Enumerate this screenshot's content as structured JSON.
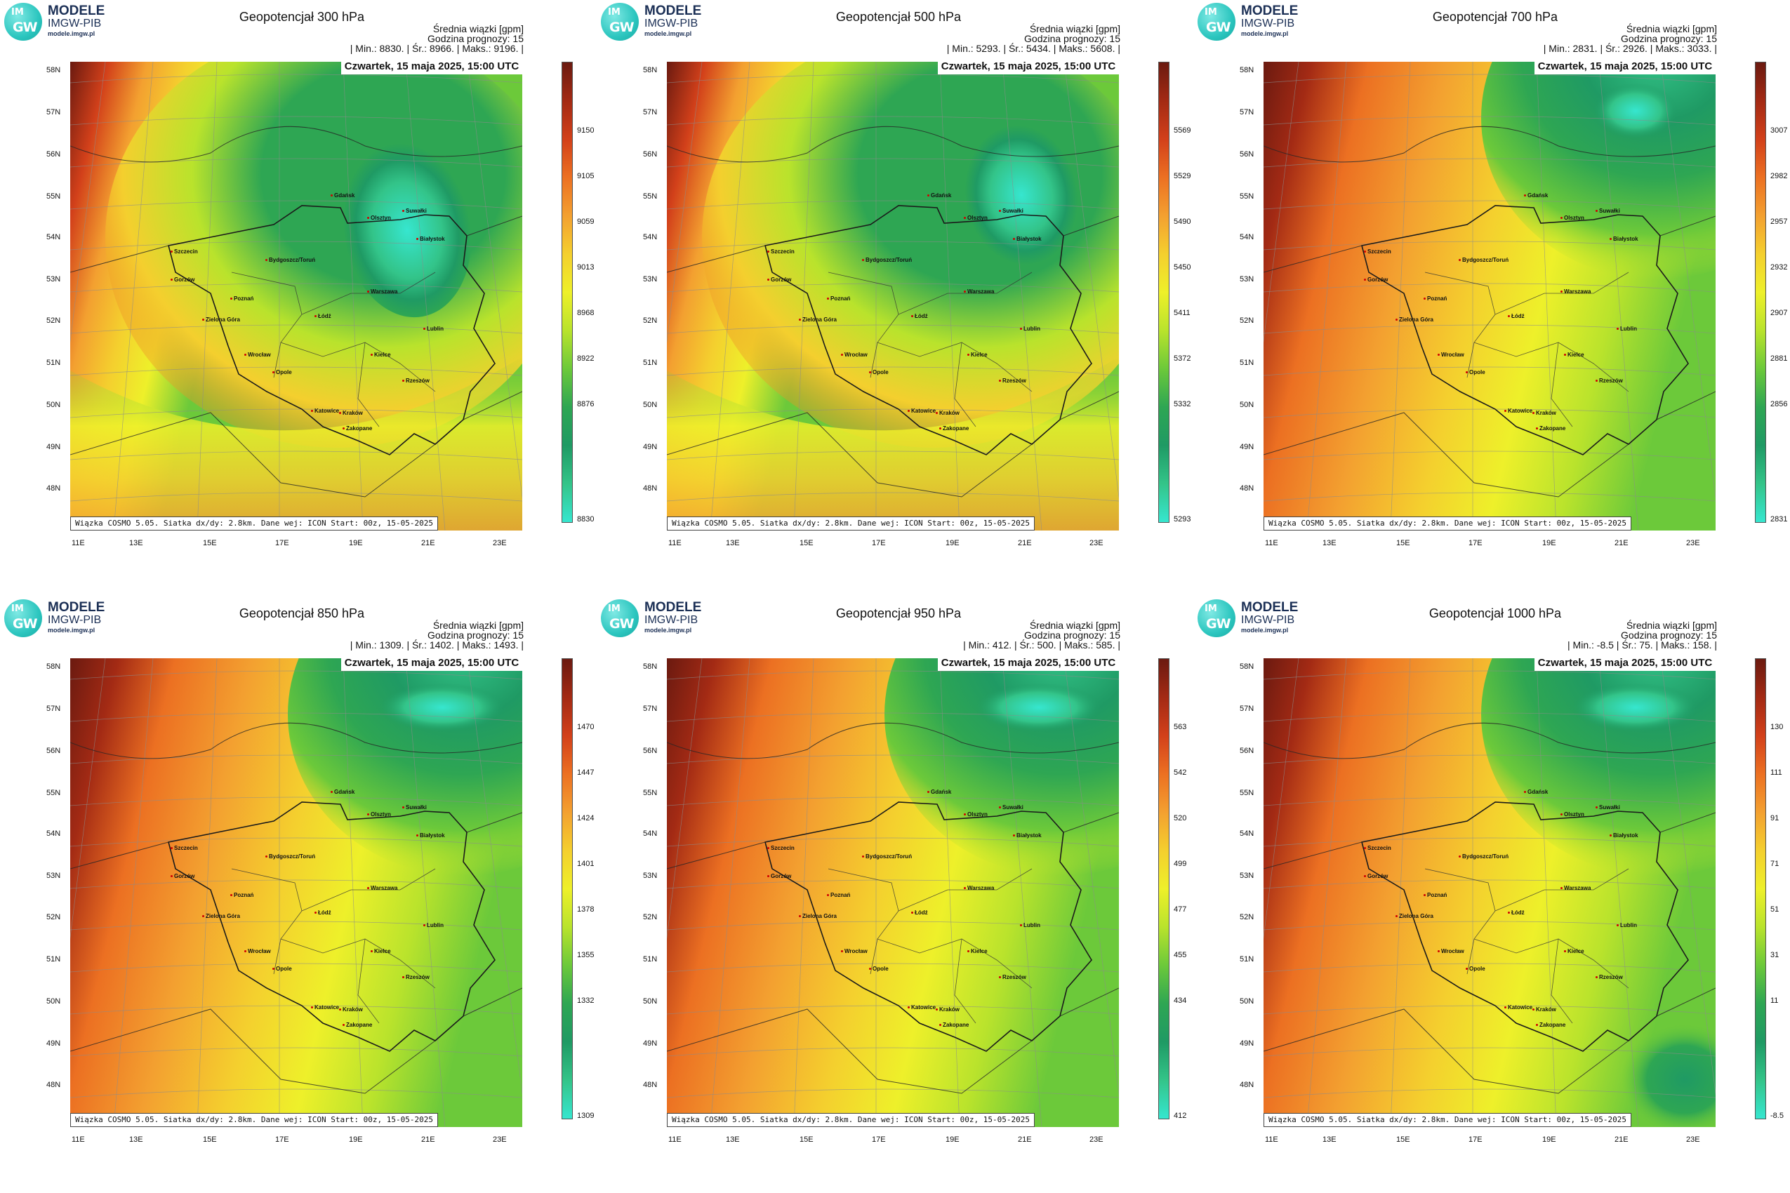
{
  "logo": {
    "name": "MODELE",
    "org": "IMGW-PIB",
    "url": "modele.imgw.pl",
    "badge_top": "IM",
    "badge_bottom": "GW"
  },
  "common": {
    "info_label": "Średnia wiązki [gpm]",
    "forecast_hour": "Godzina prognozy: 15",
    "date": "Czwartek, 15 maja 2025, 15:00 UTC",
    "footer": "Wiązka COSMO 5.05. Siatka dx/dy: 2.8km. Dane wej: ICON Start: 00z, 15-05-2025",
    "lat_labels": [
      "58N",
      "57N",
      "56N",
      "55N",
      "54N",
      "53N",
      "52N",
      "51N",
      "50N",
      "49N",
      "48N"
    ],
    "lon_labels": [
      "11E",
      "13E",
      "15E",
      "17E",
      "19E",
      "21E",
      "23E"
    ],
    "cities": [
      "Gdańsk",
      "Olsztyn",
      "Suwałki",
      "Białystok",
      "Szczecin",
      "Bydgoszcz/Toruń",
      "Gorzów",
      "Poznań",
      "Warszawa",
      "Zielona Góra",
      "Łódź",
      "Lublin",
      "Wrocław",
      "Opole",
      "Kielce",
      "Katowice",
      "Kraków",
      "Rzeszów",
      "Zakopane"
    ]
  },
  "panels": [
    {
      "title": "Geopotencjał 300 hPa",
      "stats": "| Min.:    8830. | Śr.:    8966. | Maks.:    9196. |",
      "colorbar_ticks": [
        "9150",
        "9105",
        "9059",
        "9013",
        "8968",
        "8922",
        "8876",
        "8830"
      ],
      "pattern": "trough",
      "field": {
        "min": 8830,
        "mean": 8966,
        "max": 9196,
        "unit": "gpm"
      }
    },
    {
      "title": "Geopotencjał 500 hPa",
      "stats": "| Min.:    5293. | Śr.:    5434. | Maks.:    5608. |",
      "colorbar_ticks": [
        "5569",
        "5529",
        "5490",
        "5450",
        "5411",
        "5372",
        "5332",
        "5293"
      ],
      "pattern": "trough",
      "field": {
        "min": 5293,
        "mean": 5434,
        "max": 5608,
        "unit": "gpm"
      }
    },
    {
      "title": "Geopotencjał 700 hPa",
      "stats": "| Min.:    2831. | Śr.:    2926. | Maks.:    3033. |",
      "colorbar_ticks": [
        "3007",
        "2982",
        "2957",
        "2932",
        "2907",
        "2881",
        "2856",
        "2831"
      ],
      "pattern": "ne-low",
      "field": {
        "min": 2831,
        "mean": 2926,
        "max": 3033,
        "unit": "gpm"
      }
    },
    {
      "title": "Geopotencjał 850 hPa",
      "stats": "| Min.:    1309. | Śr.:    1402. | Maks.:    1493. |",
      "colorbar_ticks": [
        "1470",
        "1447",
        "1424",
        "1401",
        "1378",
        "1355",
        "1332",
        "1309"
      ],
      "pattern": "ne-low",
      "field": {
        "min": 1309,
        "mean": 1402,
        "max": 1493,
        "unit": "gpm"
      }
    },
    {
      "title": "Geopotencjał 950 hPa",
      "stats": "| Min.:    412. | Śr.:    500. | Maks.:    585. |",
      "colorbar_ticks": [
        "563",
        "542",
        "520",
        "499",
        "477",
        "455",
        "434",
        "412"
      ],
      "pattern": "ne-low",
      "field": {
        "min": 412,
        "mean": 500,
        "max": 585,
        "unit": "gpm"
      }
    },
    {
      "title": "Geopotencjał 1000 hPa",
      "stats": "| Min.:    -8.5 | Śr.:    75. | Maks.:    158. |",
      "colorbar_ticks": [
        "130",
        "111",
        "91",
        "71",
        "51",
        "31",
        "11",
        "-8.5"
      ],
      "pattern": "ne-low-se",
      "field": {
        "min": -8.5,
        "mean": 75,
        "max": 158,
        "unit": "gpm"
      }
    }
  ],
  "colors": {
    "scale": [
      "#6b1a10",
      "#a32a14",
      "#d2401a",
      "#ec7022",
      "#f3a030",
      "#f4cf2e",
      "#eef02a",
      "#b9e32c",
      "#6cc93a",
      "#2ea653",
      "#1f9a64",
      "#33c489",
      "#36e6cf"
    ]
  }
}
